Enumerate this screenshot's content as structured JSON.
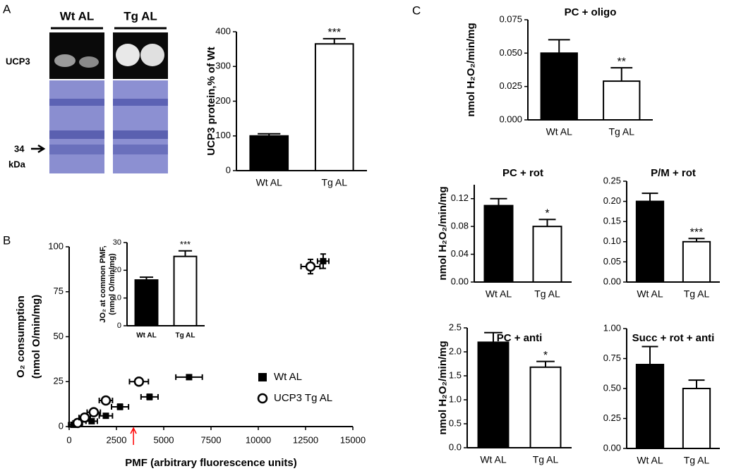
{
  "figure": {
    "panel_labels": [
      "A",
      "B",
      "C"
    ],
    "blot": {
      "lanes": [
        "Wt AL",
        "Tg AL"
      ],
      "band_label": "UCP3",
      "marker": "34",
      "marker_unit": "kDa"
    }
  },
  "chart_data": [
    {
      "type": "bar",
      "ylabel": [
        "UCP3 protein,% of Wt"
      ],
      "categories": [
        "Wt AL",
        "Tg AL"
      ],
      "values": [
        100,
        365
      ],
      "errors": [
        6,
        15
      ],
      "colors": [
        "#000000",
        "#ffffff"
      ],
      "significance": [
        null,
        "***"
      ],
      "ylim": [
        0,
        400
      ],
      "yticks": [
        0,
        100,
        200,
        300,
        400
      ]
    },
    {
      "type": "scatter",
      "xlabel": "PMF (arbitrary fluorescence units)",
      "ylabel": [
        "O₂ consumption",
        "(nmol O/min/mg)"
      ],
      "series": [
        {
          "name": "Wt AL",
          "marker": "square",
          "color": "#000000",
          "x": [
            220,
            1190,
            1940,
            2690,
            4250,
            6340,
            13430
          ],
          "values": [
            1,
            3,
            6,
            11,
            16.5,
            27.5,
            92
          ],
          "xerr": [
            250,
            300,
            350,
            450,
            450,
            700,
            300
          ],
          "yerr": [
            0.5,
            0.8,
            1,
            1.5,
            1.5,
            1.2,
            4
          ]
        },
        {
          "name": "UCP3 Tg AL",
          "marker": "circle",
          "color": "#000000",
          "x": [
            450,
            820,
            1300,
            1940,
            3690,
            12760
          ],
          "values": [
            2,
            5,
            8,
            14.5,
            25,
            89
          ],
          "xerr": [
            250,
            300,
            350,
            350,
            500,
            500
          ],
          "yerr": [
            0.5,
            1,
            1,
            1.5,
            1.5,
            4
          ]
        }
      ],
      "arrow_x": 3400,
      "arrow_color": "#ff0000",
      "xlim": [
        0,
        15000
      ],
      "xticks": [
        0,
        2500,
        5000,
        7500,
        10000,
        12500,
        15000
      ],
      "ylim": [
        0,
        100
      ],
      "yticks": [
        0,
        25,
        50,
        75,
        100
      ]
    },
    {
      "type": "bar",
      "ylabel": [
        "JO₂ at common PMF,",
        "(nmol O/min/mg)"
      ],
      "categories": [
        "Wt AL",
        "Tg AL"
      ],
      "category_color": "#e8001c",
      "values": [
        16.5,
        25
      ],
      "errors": [
        1,
        2
      ],
      "colors": [
        "#000000",
        "#ffffff"
      ],
      "significance": [
        null,
        "***"
      ],
      "ylim": [
        0,
        30
      ],
      "yticks": [
        0,
        10,
        20,
        30
      ]
    },
    {
      "type": "bar",
      "title": "PC + oligo",
      "ylabel": [
        "nmol H₂O₂/min/mg"
      ],
      "categories": [
        "Wt AL",
        "Tg AL"
      ],
      "values": [
        0.05,
        0.029
      ],
      "errors": [
        0.01,
        0.01
      ],
      "colors": [
        "#000000",
        "#ffffff"
      ],
      "significance": [
        null,
        "**"
      ],
      "ylim": [
        0,
        0.075
      ],
      "yticks": [
        {
          "value": 0,
          "label": "0.000"
        },
        {
          "value": 0.025,
          "label": "0.025"
        },
        {
          "value": 0.05,
          "label": "0.050"
        },
        {
          "value": 0.075,
          "label": "0.075"
        }
      ]
    },
    {
      "type": "bar",
      "title": "PC + rot",
      "ylabel": [
        "nmol H₂O₂/min/mg"
      ],
      "categories": [
        "Wt AL",
        "Tg AL"
      ],
      "values": [
        0.11,
        0.08
      ],
      "errors": [
        0.01,
        0.01
      ],
      "colors": [
        "#000000",
        "#ffffff"
      ],
      "significance": [
        null,
        "*"
      ],
      "ylim": [
        0,
        0.14
      ],
      "yticks": [
        {
          "value": 0,
          "label": "0.00"
        },
        0.04,
        0.08,
        0.12
      ]
    },
    {
      "type": "bar",
      "title": "P/M + rot",
      "categories": [
        "Wt AL",
        "Tg AL"
      ],
      "values": [
        0.2,
        0.1
      ],
      "errors": [
        0.02,
        0.008
      ],
      "colors": [
        "#000000",
        "#ffffff"
      ],
      "significance": [
        null,
        "***"
      ],
      "ylim": [
        0,
        0.25
      ],
      "yticks": [
        {
          "value": 0,
          "label": "0.00"
        },
        0.05,
        {
          "value": 0.1,
          "label": "0.10"
        },
        0.15,
        {
          "value": 0.2,
          "label": "0.20"
        },
        0.25
      ]
    },
    {
      "type": "bar",
      "title": "PC + anti",
      "ylabel": [
        "nmol H₂O₂/min/mg"
      ],
      "categories": [
        "Wt AL",
        "Tg AL"
      ],
      "values": [
        2.2,
        1.68
      ],
      "errors": [
        0.2,
        0.12
      ],
      "colors": [
        "#000000",
        "#ffffff"
      ],
      "significance": [
        null,
        "*"
      ],
      "ylim": [
        0,
        2.5
      ],
      "yticks": [
        {
          "value": 0,
          "label": "0.0"
        },
        0.5,
        {
          "value": 1,
          "label": "1.0"
        },
        1.5,
        {
          "value": 2,
          "label": "2.0"
        },
        2.5
      ]
    },
    {
      "type": "bar",
      "title": "Succ + rot + anti",
      "categories": [
        "Wt AL",
        "Tg AL"
      ],
      "values": [
        0.7,
        0.5
      ],
      "errors": [
        0.15,
        0.07
      ],
      "colors": [
        "#000000",
        "#ffffff"
      ],
      "significance": [
        null,
        null
      ],
      "ylim": [
        0,
        1
      ],
      "yticks": [
        {
          "value": 0,
          "label": "0.00"
        },
        0.25,
        {
          "value": 0.5,
          "label": "0.50"
        },
        0.75,
        {
          "value": 1,
          "label": "1.00"
        }
      ]
    }
  ]
}
